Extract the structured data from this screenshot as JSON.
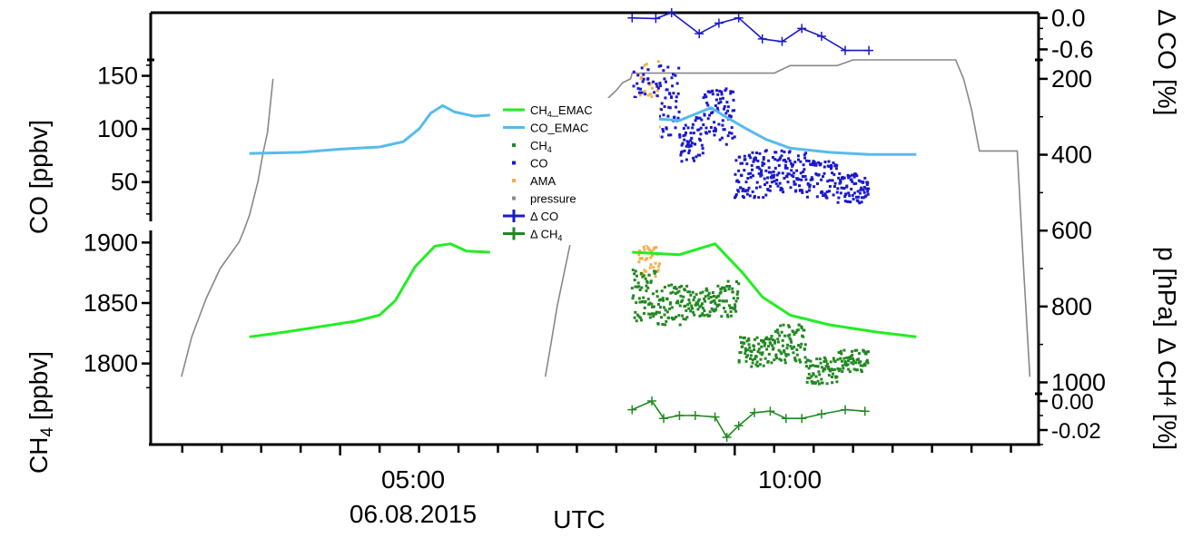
{
  "chart_data": {
    "type": "line",
    "xaxis": {
      "label": "UTC",
      "date_label": "06.08.2015",
      "ticks": [
        "05:00",
        "10:00"
      ],
      "range_hours": [
        2.6,
        13.85
      ]
    },
    "panels": {
      "delta_co": {
        "ylabel_main": "Δ CO",
        "ylabel_unit": "[%]",
        "ticks": [
          "0.0",
          "-0.6"
        ],
        "tick_values": [
          0.0,
          -0.6
        ],
        "ylim": [
          -0.8,
          0.1
        ]
      },
      "co": {
        "ylabel": "CO [ppbv]",
        "ticks": [
          "150",
          "100",
          "50"
        ],
        "tick_values": [
          150,
          100,
          50
        ],
        "ylim": [
          13,
          165
        ]
      },
      "ch4": {
        "ylabel_pre": "CH",
        "ylabel_sub": "4",
        "ylabel_post": " [ppbv]",
        "ticks": [
          "1900",
          "1850",
          "1800"
        ],
        "tick_values": [
          1900,
          1850,
          1800
        ],
        "ylim": [
          1775,
          1910
        ]
      },
      "delta_ch4": {
        "ylabel_pre": "Δ CH",
        "ylabel_sub": "4",
        "ylabel_post": " [%]",
        "ticks": [
          "0.00",
          "-0.02"
        ],
        "tick_values": [
          0.0,
          -0.02
        ],
        "ylim": [
          -0.03,
          0.005
        ]
      },
      "pressure": {
        "ylabel": "p [hPa]",
        "ticks": [
          "200",
          "400",
          "600",
          "800",
          "1000"
        ],
        "tick_values": [
          200,
          400,
          600,
          800,
          1000
        ],
        "ylim": [
          1030,
          150
        ]
      }
    },
    "legend": {
      "placement": "center",
      "entries": [
        {
          "label_pre": "CH",
          "label_sub": "4",
          "label_post": "_EMAC",
          "style": "line",
          "color": "#22ee22"
        },
        {
          "label_pre": "CO_EMAC",
          "label_sub": "",
          "label_post": "",
          "style": "line",
          "color": "#55bbee"
        },
        {
          "label_pre": "CH",
          "label_sub": "4",
          "label_post": "",
          "style": "dot",
          "color": "#228822"
        },
        {
          "label_pre": "CO",
          "label_sub": "",
          "label_post": "",
          "style": "dot",
          "color": "#1a1acc"
        },
        {
          "label_pre": "AMA",
          "label_sub": "",
          "label_post": "",
          "style": "dot",
          "color": "#f5b041"
        },
        {
          "label_pre": "pressure",
          "label_sub": "",
          "label_post": "",
          "style": "dot",
          "color": "#888888"
        },
        {
          "label_pre": "Δ CO",
          "label_sub": "",
          "label_post": "",
          "style": "cross",
          "color": "#1a1acc"
        },
        {
          "label_pre": "Δ CH",
          "label_sub": "4",
          "label_post": "",
          "style": "cross",
          "color": "#228822"
        }
      ]
    },
    "series": {
      "pressure": {
        "color": "#888888",
        "x": [
          2.99,
          3.12,
          3.3,
          3.48,
          3.72,
          3.78,
          3.85,
          3.9,
          3.96,
          4.02,
          4.08,
          4.15,
          7.6,
          7.67,
          7.75,
          7.85,
          7.95,
          8.05,
          8.15,
          8.3,
          8.4,
          8.5,
          8.58,
          8.68,
          8.7,
          8.72,
          10.15,
          10.5,
          10.7,
          10.9,
          11.3,
          11.5,
          11.8,
          12.2,
          12.3,
          12.6,
          12.8,
          12.9,
          13.0,
          13.1,
          13.2,
          13.28,
          13.35,
          13.42,
          13.5,
          13.58,
          13.66,
          13.74
        ],
        "y": [
          985,
          880,
          780,
          700,
          630,
          600,
          560,
          520,
          470,
          400,
          340,
          200,
          985,
          900,
          800,
          700,
          600,
          500,
          400,
          300,
          250,
          230,
          210,
          200,
          185,
          185,
          185,
          185,
          165,
          165,
          165,
          150,
          150,
          150,
          150,
          150,
          150,
          200,
          280,
          390,
          390,
          390,
          390,
          390,
          390,
          390,
          700,
          985
        ]
      },
      "co_emac": {
        "color": "#55bbee",
        "x": [
          3.85,
          4.5,
          5.0,
          5.5,
          5.8,
          6.0,
          6.15,
          6.3,
          6.45,
          6.7,
          6.9
        ],
        "y": [
          77,
          78,
          81,
          83,
          88,
          100,
          115,
          122,
          116,
          112,
          113
        ]
      },
      "co_emac_b": {
        "color": "#55bbee",
        "x": [
          8.7,
          8.9,
          9.3,
          9.7,
          9.85,
          10.15,
          10.4,
          10.7,
          11.2,
          11.7,
          12.3
        ],
        "y": [
          112,
          110,
          108,
          120,
          113,
          100,
          90,
          82,
          78,
          76,
          76
        ]
      },
      "ch4_emac": {
        "color": "#22ee22",
        "x": [
          3.85,
          4.3,
          4.8,
          5.2,
          5.5,
          5.7,
          5.95,
          6.2,
          6.4,
          6.6,
          6.9
        ],
        "y": [
          1822,
          1826,
          1831,
          1835,
          1840,
          1852,
          1880,
          1897,
          1899,
          1893,
          1892
        ],
        "x2": [
          8.7,
          9.3,
          9.75,
          10.1,
          10.35,
          10.7,
          11.2,
          11.8,
          12.3
        ],
        "y2": [
          1892,
          1890,
          1899,
          1875,
          1855,
          1840,
          1832,
          1826,
          1822
        ]
      },
      "delta_co": {
        "color": "#1a1acc",
        "x": [
          8.7,
          9.0,
          9.2,
          9.55,
          9.8,
          10.05,
          10.35,
          10.6,
          10.85,
          11.1,
          11.4,
          11.7
        ],
        "y": [
          0.0,
          -0.01,
          0.1,
          -0.3,
          -0.1,
          0.0,
          -0.4,
          -0.45,
          -0.2,
          -0.35,
          -0.62,
          -0.62
        ]
      },
      "delta_ch4": {
        "color": "#228822",
        "x": [
          8.7,
          8.95,
          9.1,
          9.3,
          9.5,
          9.75,
          9.9,
          10.05,
          10.25,
          10.45,
          10.65,
          10.85,
          11.1,
          11.4,
          11.65
        ],
        "y": [
          -0.006,
          0.0,
          -0.012,
          -0.01,
          -0.01,
          -0.011,
          -0.025,
          -0.017,
          -0.008,
          -0.007,
          -0.012,
          -0.012,
          -0.009,
          -0.006,
          -0.007
        ]
      },
      "co_obs": {
        "color": "#1a1acc",
        "segments": [
          {
            "x0": 8.7,
            "x1": 9.0,
            "ymin": 75,
            "ymax": 160,
            "n": 60
          },
          {
            "x0": 9.0,
            "x1": 9.3,
            "ymin": 90,
            "ymax": 160,
            "n": 55
          },
          {
            "x0": 9.3,
            "x1": 9.6,
            "ymin": 68,
            "ymax": 112,
            "n": 55
          },
          {
            "x0": 9.6,
            "x1": 10.0,
            "ymin": 85,
            "ymax": 140,
            "n": 75
          },
          {
            "x0": 10.0,
            "x1": 10.4,
            "ymin": 35,
            "ymax": 80,
            "n": 80
          },
          {
            "x0": 10.4,
            "x1": 10.9,
            "ymin": 40,
            "ymax": 80,
            "n": 95
          },
          {
            "x0": 10.9,
            "x1": 11.3,
            "ymin": 35,
            "ymax": 70,
            "n": 70
          },
          {
            "x0": 11.3,
            "x1": 11.7,
            "ymin": 30,
            "ymax": 58,
            "n": 75
          }
        ]
      },
      "ch4_obs": {
        "color": "#228822",
        "segments": [
          {
            "x0": 8.7,
            "x1": 9.0,
            "ymin": 1835,
            "ymax": 1878,
            "n": 60
          },
          {
            "x0": 9.0,
            "x1": 9.4,
            "ymin": 1832,
            "ymax": 1865,
            "n": 70
          },
          {
            "x0": 9.4,
            "x1": 9.7,
            "ymin": 1838,
            "ymax": 1862,
            "n": 50
          },
          {
            "x0": 9.7,
            "x1": 10.05,
            "ymin": 1838,
            "ymax": 1868,
            "n": 60
          },
          {
            "x0": 10.05,
            "x1": 10.45,
            "ymin": 1797,
            "ymax": 1822,
            "n": 70
          },
          {
            "x0": 10.45,
            "x1": 10.9,
            "ymin": 1800,
            "ymax": 1832,
            "n": 80
          },
          {
            "x0": 10.9,
            "x1": 11.3,
            "ymin": 1782,
            "ymax": 1805,
            "n": 65
          },
          {
            "x0": 11.3,
            "x1": 11.7,
            "ymin": 1793,
            "ymax": 1812,
            "n": 60
          }
        ]
      },
      "ama_obs": {
        "color": "#f5b041",
        "segments": [
          {
            "x0": 8.78,
            "x1": 9.05,
            "ymin": 85,
            "ymax": 165,
            "n": 45,
            "panel": "co"
          },
          {
            "x0": 8.78,
            "x1": 9.05,
            "ymin": 1872,
            "ymax": 1905,
            "n": 40,
            "panel": "ch4"
          }
        ]
      }
    }
  }
}
